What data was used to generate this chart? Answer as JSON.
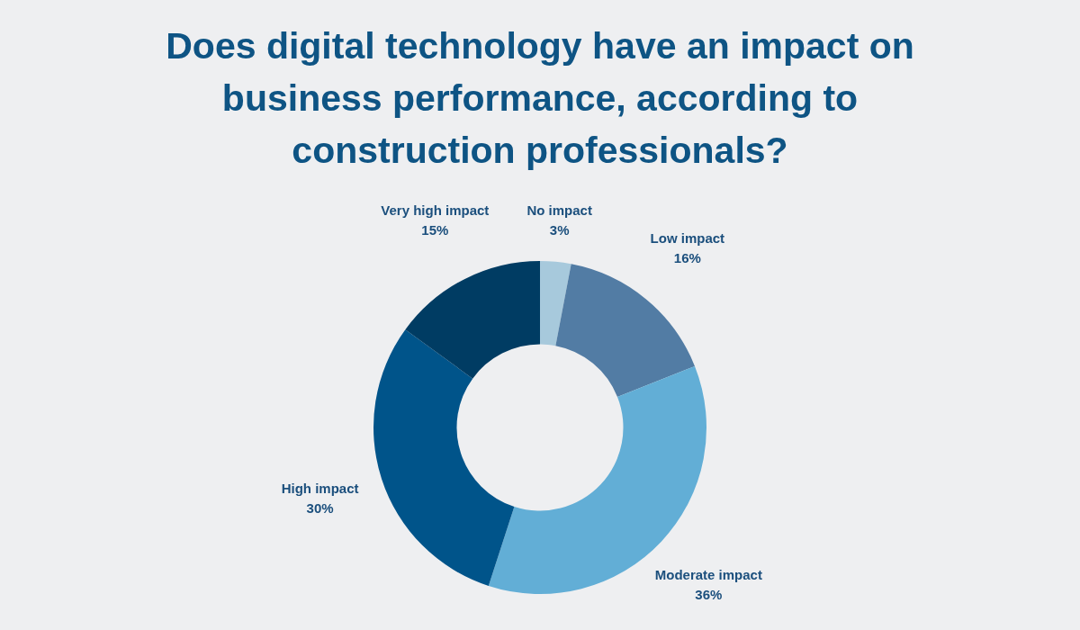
{
  "chart_data": {
    "type": "donut",
    "title": "Does digital technology have an impact on business performance, according to construction professionals?",
    "categories": [
      "No impact",
      "Low impact",
      "Moderate impact",
      "High impact",
      "Very high impact"
    ],
    "values": [
      3,
      16,
      36,
      30,
      15
    ],
    "value_labels": [
      "3%",
      "16%",
      "36%",
      "30%",
      "15%"
    ],
    "colors": [
      "#a7c9dc",
      "#527ca4",
      "#62aed6",
      "#00548a",
      "#003c63"
    ]
  }
}
